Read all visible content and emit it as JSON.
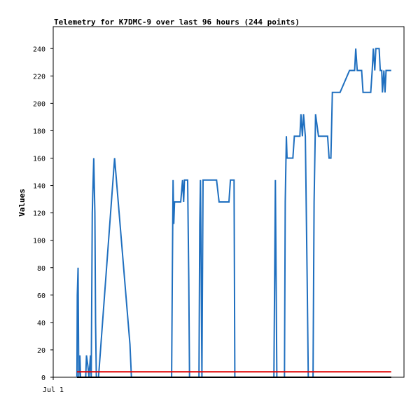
{
  "chart_data": {
    "type": "line",
    "title": "Telemetry for K7DMC-9 over last 96 hours (244 points)",
    "xlabel": "",
    "ylabel": "Values",
    "ylim": [
      0,
      256
    ],
    "xlim": [
      0,
      96
    ],
    "x_tick_labels": [
      {
        "x": 0,
        "label": "Jul 1"
      }
    ],
    "y_ticks": [
      0,
      20,
      40,
      60,
      80,
      100,
      120,
      140,
      160,
      180,
      200,
      220,
      240
    ],
    "grid": false,
    "legend": "none",
    "series": [
      {
        "color": "#1f6fbf",
        "points": [
          [
            6.5,
            0
          ],
          [
            6.6,
            60
          ],
          [
            6.8,
            80
          ],
          [
            6.9,
            40
          ],
          [
            7.0,
            0
          ],
          [
            7.3,
            16
          ],
          [
            7.5,
            0
          ],
          [
            8.9,
            0
          ],
          [
            9.1,
            16
          ],
          [
            9.5,
            8
          ],
          [
            9.8,
            0
          ],
          [
            10.2,
            16
          ],
          [
            10.4,
            0
          ],
          [
            10.7,
            120
          ],
          [
            11.1,
            160
          ],
          [
            11.4,
            120
          ],
          [
            11.6,
            40
          ],
          [
            11.8,
            0
          ],
          [
            12.4,
            0
          ],
          [
            16.8,
            160
          ],
          [
            21.0,
            24
          ],
          [
            21.4,
            0
          ],
          [
            32.4,
            0
          ],
          [
            32.6,
            72
          ],
          [
            32.8,
            144
          ],
          [
            33.0,
            112
          ],
          [
            33.2,
            128
          ],
          [
            34.9,
            128
          ],
          [
            35.4,
            144
          ],
          [
            35.7,
            128
          ],
          [
            35.9,
            144
          ],
          [
            36.8,
            144
          ],
          [
            37.1,
            72
          ],
          [
            37.3,
            0
          ],
          [
            39.9,
            0
          ],
          [
            40.1,
            112
          ],
          [
            40.3,
            144
          ],
          [
            40.5,
            72
          ],
          [
            40.7,
            0
          ],
          [
            41.0,
            144
          ],
          [
            44.7,
            144
          ],
          [
            45.4,
            128
          ],
          [
            48.1,
            128
          ],
          [
            48.5,
            144
          ],
          [
            49.5,
            144
          ],
          [
            49.7,
            0
          ],
          [
            60.4,
            0
          ],
          [
            60.8,
            144
          ],
          [
            61.2,
            0
          ],
          [
            63.3,
            0
          ],
          [
            63.5,
            128
          ],
          [
            63.8,
            176
          ],
          [
            64.0,
            160
          ],
          [
            65.6,
            160
          ],
          [
            66.0,
            176
          ],
          [
            67.5,
            176
          ],
          [
            67.8,
            192
          ],
          [
            68.2,
            176
          ],
          [
            68.5,
            192
          ],
          [
            69.0,
            176
          ],
          [
            69.5,
            72
          ],
          [
            69.8,
            0
          ],
          [
            71.1,
            0
          ],
          [
            71.4,
            128
          ],
          [
            71.8,
            192
          ],
          [
            72.6,
            176
          ],
          [
            75.1,
            176
          ],
          [
            75.5,
            160
          ],
          [
            76.0,
            160
          ],
          [
            76.4,
            208
          ],
          [
            78.5,
            208
          ],
          [
            81.1,
            224
          ],
          [
            82.5,
            224
          ],
          [
            82.8,
            240
          ],
          [
            83.2,
            224
          ],
          [
            84.4,
            224
          ],
          [
            84.8,
            208
          ],
          [
            86.9,
            208
          ],
          [
            87.3,
            224
          ],
          [
            87.6,
            240
          ],
          [
            88.0,
            224
          ],
          [
            88.3,
            240
          ],
          [
            89.2,
            240
          ],
          [
            89.5,
            224
          ],
          [
            89.9,
            224
          ],
          [
            90.1,
            208
          ],
          [
            90.5,
            224
          ],
          [
            90.8,
            208
          ],
          [
            91.1,
            224
          ],
          [
            92.5,
            224
          ]
        ]
      },
      {
        "color": "#e00000",
        "points": [
          [
            6.5,
            4
          ],
          [
            92.5,
            4
          ]
        ]
      },
      {
        "color": "#000000",
        "points": [
          [
            6.5,
            0
          ],
          [
            92.5,
            0
          ]
        ]
      }
    ]
  }
}
